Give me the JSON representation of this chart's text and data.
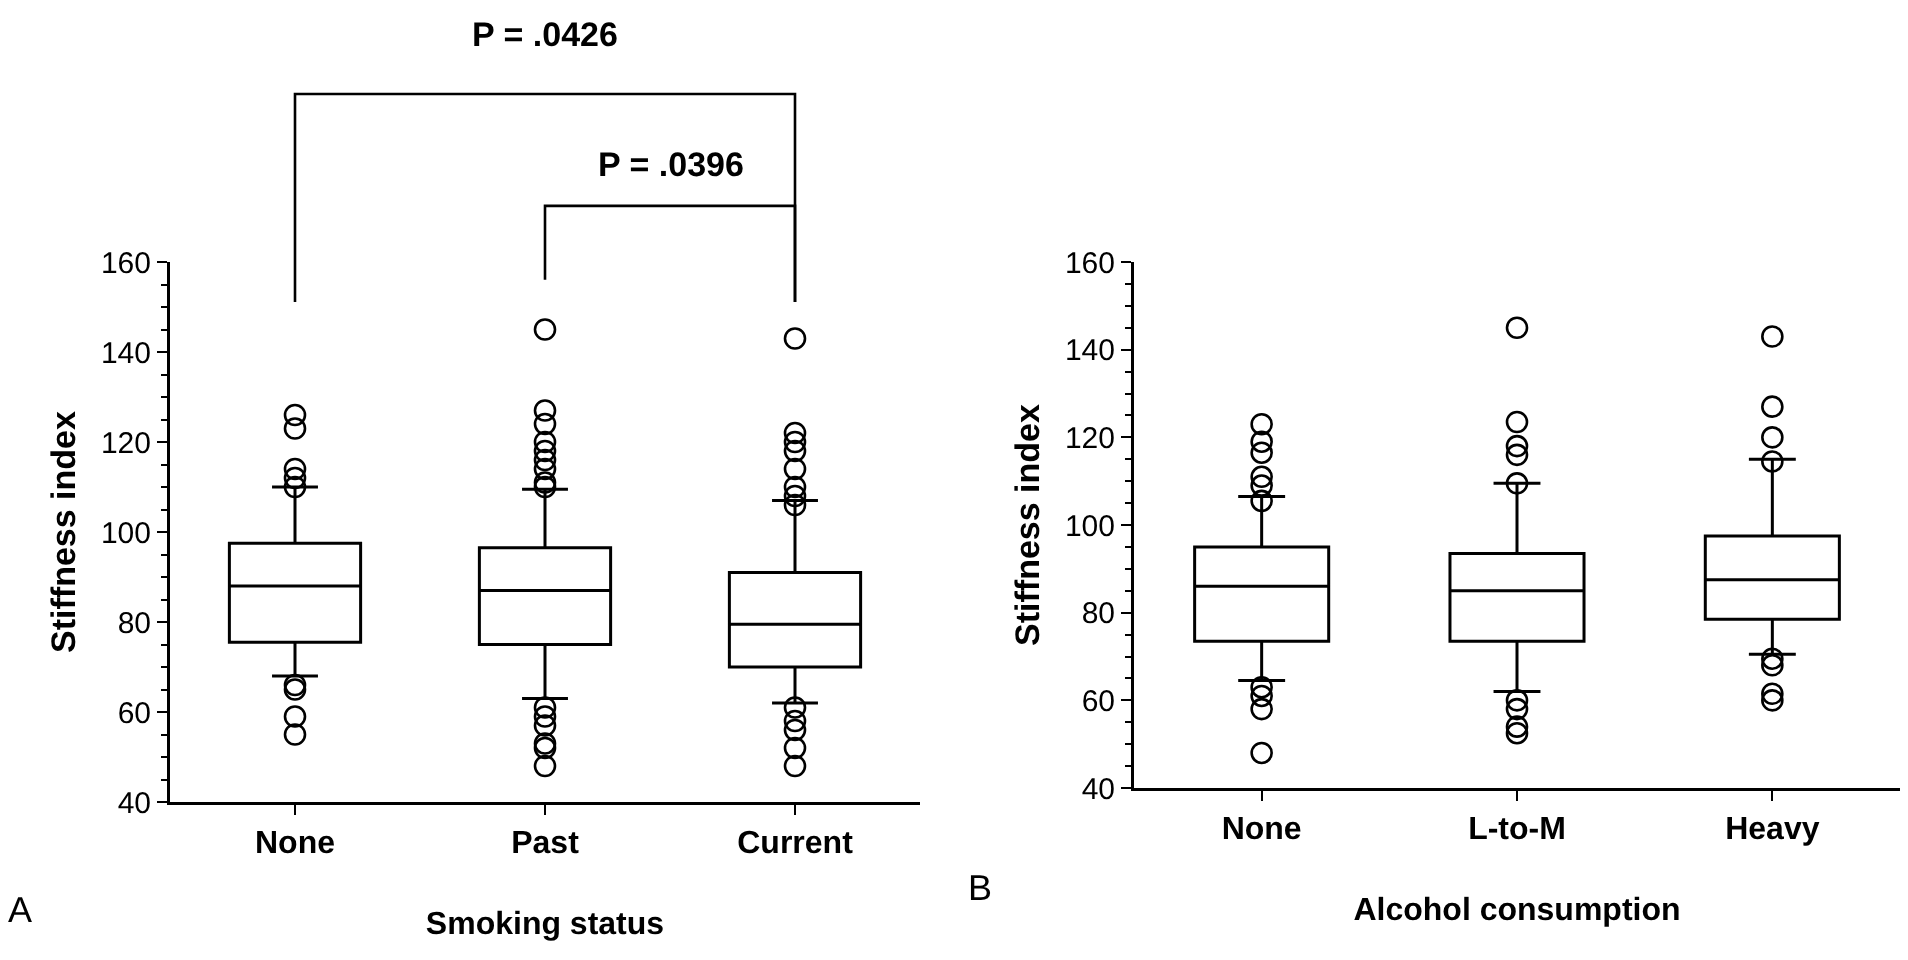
{
  "chart_data": [
    {
      "type": "box",
      "categories": [
        "None",
        "Past",
        "Current"
      ],
      "xlabel": "Smoking status",
      "ylabel": "Stiffness index",
      "ylim": [
        40,
        160
      ],
      "yticks": [
        40,
        60,
        80,
        100,
        120,
        140,
        160
      ],
      "grid": false,
      "boxes": [
        {
          "low": 68,
          "q1": 75.5,
          "median": 88,
          "q3": 97.5,
          "high": 110,
          "outliers": [
            126,
            123,
            114,
            112,
            110,
            66,
            65,
            59,
            55
          ]
        },
        {
          "low": 63,
          "q1": 75,
          "median": 87,
          "q3": 96.5,
          "high": 109.5,
          "outliers": [
            145,
            127,
            124,
            120,
            118,
            116,
            114,
            111,
            110,
            61,
            59,
            57,
            53,
            52,
            48
          ]
        },
        {
          "low": 62,
          "q1": 70,
          "median": 79.5,
          "q3": 91,
          "high": 107,
          "outliers": [
            143,
            122,
            120,
            118,
            114,
            110,
            108,
            106,
            61,
            58,
            56,
            52,
            48
          ]
        }
      ],
      "annotations": [
        "P = .0426",
        "P = .0396",
        "A"
      ]
    },
    {
      "type": "box",
      "categories": [
        "None",
        "L-to-M",
        "Heavy"
      ],
      "xlabel": "Alcohol consumption",
      "ylabel": "Stiffness index",
      "ylim": [
        40,
        160
      ],
      "yticks": [
        40,
        60,
        80,
        100,
        120,
        140,
        160
      ],
      "grid": false,
      "boxes": [
        {
          "low": 64.5,
          "q1": 73.5,
          "median": 86,
          "q3": 95,
          "high": 106.5,
          "outliers": [
            123,
            119,
            116.5,
            111,
            109,
            105.5,
            63,
            61,
            58,
            48
          ]
        },
        {
          "low": 62,
          "q1": 73.5,
          "median": 85,
          "q3": 93.5,
          "high": 109.5,
          "outliers": [
            145,
            123.5,
            118,
            116,
            109.5,
            60,
            58,
            54,
            52.5
          ]
        },
        {
          "low": 70.5,
          "q1": 78.5,
          "median": 87.5,
          "q3": 97.5,
          "high": 115,
          "outliers": [
            143,
            127,
            120,
            114.5,
            69.5,
            68,
            61.5,
            60
          ]
        }
      ],
      "annotations": [
        "B"
      ]
    }
  ]
}
